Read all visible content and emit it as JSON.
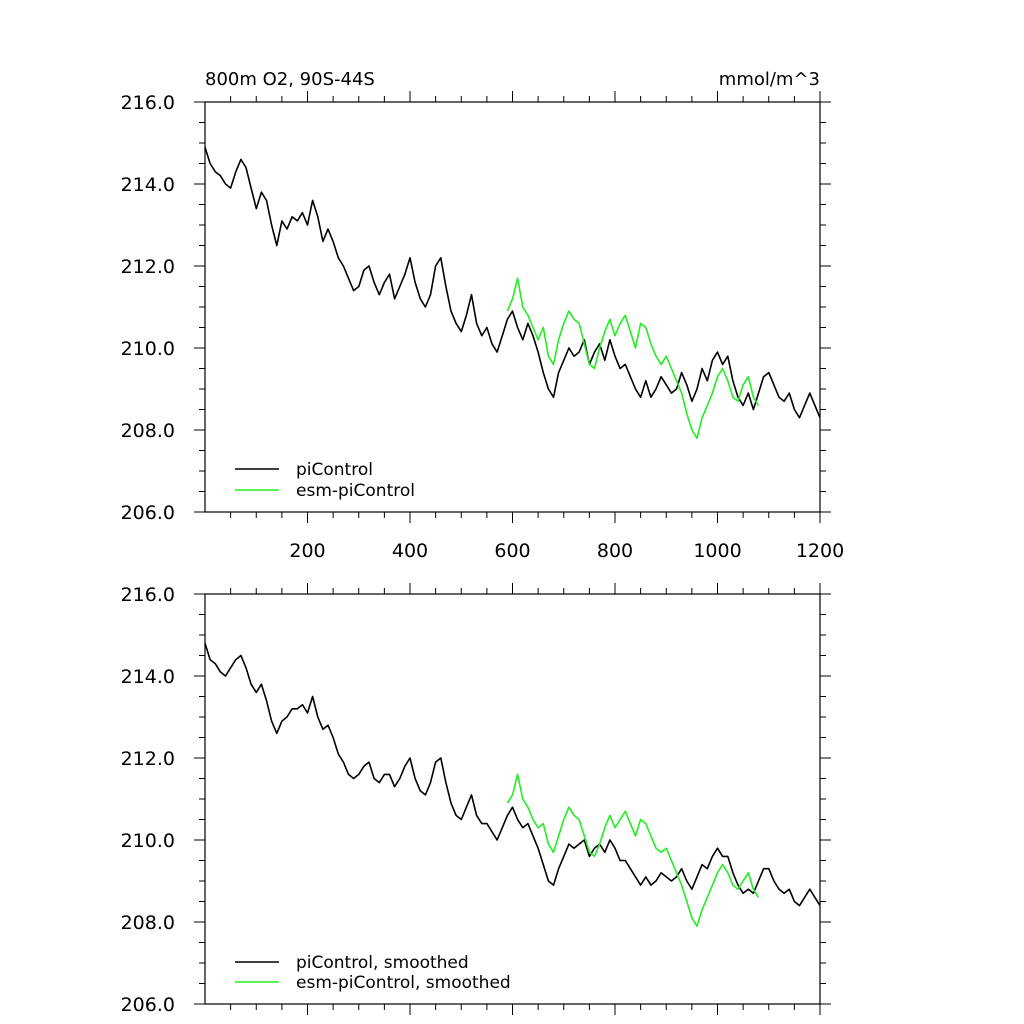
{
  "chart_data": [
    {
      "type": "line",
      "title": "800m O2, 90S-44S",
      "units": "mmol/m^3",
      "xlim": [
        0,
        1200
      ],
      "ylim": [
        206,
        216
      ],
      "xticks": [
        200,
        400,
        600,
        800,
        1000,
        1200
      ],
      "xtick_labels": [
        "200",
        "400",
        "600",
        "800",
        "1000",
        "1200"
      ],
      "yticks": [
        206,
        208,
        210,
        212,
        214,
        216
      ],
      "ytick_labels": [
        "206.0",
        "208.0",
        "210.0",
        "212.0",
        "214.0",
        "216.0"
      ],
      "legend_position": "bottom-left",
      "series": [
        {
          "name": "piControl",
          "color": "#000000",
          "x": [
            0,
            10,
            20,
            30,
            40,
            50,
            60,
            70,
            80,
            90,
            100,
            110,
            120,
            130,
            140,
            150,
            160,
            170,
            180,
            190,
            200,
            210,
            220,
            230,
            240,
            250,
            260,
            270,
            280,
            290,
            300,
            310,
            320,
            330,
            340,
            350,
            360,
            370,
            380,
            390,
            400,
            410,
            420,
            430,
            440,
            450,
            460,
            470,
            480,
            490,
            500,
            510,
            520,
            530,
            540,
            550,
            560,
            570,
            580,
            590,
            600,
            610,
            620,
            630,
            640,
            650,
            660,
            670,
            680,
            690,
            700,
            710,
            720,
            730,
            740,
            750,
            760,
            770,
            780,
            790,
            800,
            810,
            820,
            830,
            840,
            850,
            860,
            870,
            880,
            890,
            900,
            910,
            920,
            930,
            940,
            950,
            960,
            970,
            980,
            990,
            1000,
            1010,
            1020,
            1030,
            1040,
            1050,
            1060,
            1070,
            1080,
            1090,
            1100,
            1110,
            1120,
            1130,
            1140,
            1150,
            1160,
            1170,
            1180,
            1190,
            1200
          ],
          "values": [
            214.9,
            214.5,
            214.3,
            214.2,
            214.0,
            213.9,
            214.3,
            214.6,
            214.4,
            213.9,
            213.4,
            213.8,
            213.6,
            213.0,
            212.5,
            213.1,
            212.9,
            213.2,
            213.1,
            213.3,
            213.0,
            213.6,
            213.2,
            212.6,
            212.9,
            212.6,
            212.2,
            212.0,
            211.7,
            211.4,
            211.5,
            211.9,
            212.0,
            211.6,
            211.3,
            211.6,
            211.8,
            211.2,
            211.5,
            211.8,
            212.2,
            211.6,
            211.2,
            211.0,
            211.3,
            212.0,
            212.2,
            211.5,
            210.9,
            210.6,
            210.4,
            210.8,
            211.3,
            210.6,
            210.3,
            210.5,
            210.1,
            209.9,
            210.3,
            210.7,
            210.9,
            210.5,
            210.2,
            210.6,
            210.3,
            209.9,
            209.4,
            209.0,
            208.8,
            209.4,
            209.7,
            210.0,
            209.8,
            209.9,
            210.2,
            209.6,
            209.9,
            210.1,
            209.7,
            210.2,
            209.8,
            209.5,
            209.6,
            209.3,
            209.0,
            208.8,
            209.2,
            208.8,
            209.0,
            209.3,
            209.1,
            208.9,
            209.0,
            209.4,
            209.1,
            208.7,
            209.0,
            209.5,
            209.2,
            209.7,
            209.9,
            209.6,
            209.8,
            209.2,
            208.8,
            208.6,
            208.9,
            208.5,
            208.9,
            209.3,
            209.4,
            209.1,
            208.8,
            208.7,
            208.9,
            208.5,
            208.3,
            208.6,
            208.9,
            208.6,
            208.3
          ]
        },
        {
          "name": "esm-piControl",
          "color": "#22ee22",
          "x": [
            590,
            600,
            610,
            620,
            630,
            640,
            650,
            660,
            670,
            680,
            690,
            700,
            710,
            720,
            730,
            740,
            750,
            760,
            770,
            780,
            790,
            800,
            810,
            820,
            830,
            840,
            850,
            860,
            870,
            880,
            890,
            900,
            910,
            920,
            930,
            940,
            950,
            960,
            970,
            980,
            990,
            1000,
            1010,
            1020,
            1030,
            1040,
            1050,
            1060,
            1070,
            1080
          ],
          "values": [
            210.9,
            211.2,
            211.7,
            211.0,
            210.8,
            210.5,
            210.2,
            210.5,
            209.8,
            209.6,
            210.2,
            210.6,
            210.9,
            210.7,
            210.6,
            210.1,
            209.6,
            209.5,
            210.0,
            210.4,
            210.7,
            210.3,
            210.6,
            210.8,
            210.4,
            210.0,
            210.6,
            210.5,
            210.1,
            209.8,
            209.6,
            209.8,
            209.5,
            209.2,
            208.9,
            208.4,
            208.0,
            207.8,
            208.3,
            208.6,
            208.9,
            209.3,
            209.5,
            209.2,
            208.8,
            208.7,
            209.1,
            209.3,
            208.8,
            208.6
          ]
        }
      ]
    },
    {
      "type": "line",
      "title": "",
      "xlim": [
        0,
        1200
      ],
      "ylim": [
        206,
        216
      ],
      "yticks": [
        206,
        208,
        210,
        212,
        214,
        216
      ],
      "ytick_labels": [
        "206.0",
        "208.0",
        "210.0",
        "212.0",
        "214.0",
        "216.0"
      ],
      "legend_position": "bottom-left",
      "series": [
        {
          "name": "piControl, smoothed",
          "color": "#000000",
          "x": [
            0,
            10,
            20,
            30,
            40,
            50,
            60,
            70,
            80,
            90,
            100,
            110,
            120,
            130,
            140,
            150,
            160,
            170,
            180,
            190,
            200,
            210,
            220,
            230,
            240,
            250,
            260,
            270,
            280,
            290,
            300,
            310,
            320,
            330,
            340,
            350,
            360,
            370,
            380,
            390,
            400,
            410,
            420,
            430,
            440,
            450,
            460,
            470,
            480,
            490,
            500,
            510,
            520,
            530,
            540,
            550,
            560,
            570,
            580,
            590,
            600,
            610,
            620,
            630,
            640,
            650,
            660,
            670,
            680,
            690,
            700,
            710,
            720,
            730,
            740,
            750,
            760,
            770,
            780,
            790,
            800,
            810,
            820,
            830,
            840,
            850,
            860,
            870,
            880,
            890,
            900,
            910,
            920,
            930,
            940,
            950,
            960,
            970,
            980,
            990,
            1000,
            1010,
            1020,
            1030,
            1040,
            1050,
            1060,
            1070,
            1080,
            1090,
            1100,
            1110,
            1120,
            1130,
            1140,
            1150,
            1160,
            1170,
            1180,
            1190,
            1200
          ],
          "values": [
            214.8,
            214.4,
            214.3,
            214.1,
            214.0,
            214.2,
            214.4,
            214.5,
            214.2,
            213.8,
            213.6,
            213.8,
            213.4,
            212.9,
            212.6,
            212.9,
            213.0,
            213.2,
            213.2,
            213.3,
            213.1,
            213.5,
            213.0,
            212.7,
            212.8,
            212.5,
            212.1,
            211.9,
            211.6,
            211.5,
            211.6,
            211.8,
            211.9,
            211.5,
            211.4,
            211.6,
            211.6,
            211.3,
            211.5,
            211.8,
            212.0,
            211.5,
            211.2,
            211.1,
            211.4,
            211.9,
            212.0,
            211.4,
            210.9,
            210.6,
            210.5,
            210.8,
            211.1,
            210.6,
            210.4,
            210.4,
            210.2,
            210.0,
            210.3,
            210.6,
            210.8,
            210.5,
            210.3,
            210.4,
            210.1,
            209.8,
            209.4,
            209.0,
            208.9,
            209.3,
            209.6,
            209.9,
            209.8,
            209.9,
            210.0,
            209.6,
            209.8,
            209.9,
            209.7,
            210.0,
            209.8,
            209.5,
            209.5,
            209.3,
            209.1,
            208.9,
            209.1,
            208.9,
            209.0,
            209.2,
            209.1,
            209.0,
            209.1,
            209.3,
            209.0,
            208.8,
            209.1,
            209.4,
            209.3,
            209.6,
            209.8,
            209.6,
            209.6,
            209.2,
            208.9,
            208.7,
            208.8,
            208.7,
            209.0,
            209.3,
            209.3,
            209.0,
            208.8,
            208.7,
            208.8,
            208.5,
            208.4,
            208.6,
            208.8,
            208.6,
            208.4
          ]
        },
        {
          "name": "esm-piControl, smoothed",
          "color": "#22ee22",
          "x": [
            590,
            600,
            610,
            620,
            630,
            640,
            650,
            660,
            670,
            680,
            690,
            700,
            710,
            720,
            730,
            740,
            750,
            760,
            770,
            780,
            790,
            800,
            810,
            820,
            830,
            840,
            850,
            860,
            870,
            880,
            890,
            900,
            910,
            920,
            930,
            940,
            950,
            960,
            970,
            980,
            990,
            1000,
            1010,
            1020,
            1030,
            1040,
            1050,
            1060,
            1070,
            1080
          ],
          "values": [
            210.9,
            211.1,
            211.6,
            211.0,
            210.8,
            210.5,
            210.3,
            210.4,
            209.9,
            209.7,
            210.1,
            210.5,
            210.8,
            210.6,
            210.5,
            210.1,
            209.7,
            209.6,
            209.9,
            210.3,
            210.6,
            210.3,
            210.5,
            210.7,
            210.4,
            210.1,
            210.5,
            210.4,
            210.1,
            209.8,
            209.7,
            209.8,
            209.5,
            209.2,
            208.9,
            208.5,
            208.1,
            207.9,
            208.3,
            208.6,
            208.9,
            209.2,
            209.4,
            209.2,
            208.9,
            208.8,
            209.0,
            209.2,
            208.8,
            208.6
          ]
        }
      ]
    }
  ]
}
